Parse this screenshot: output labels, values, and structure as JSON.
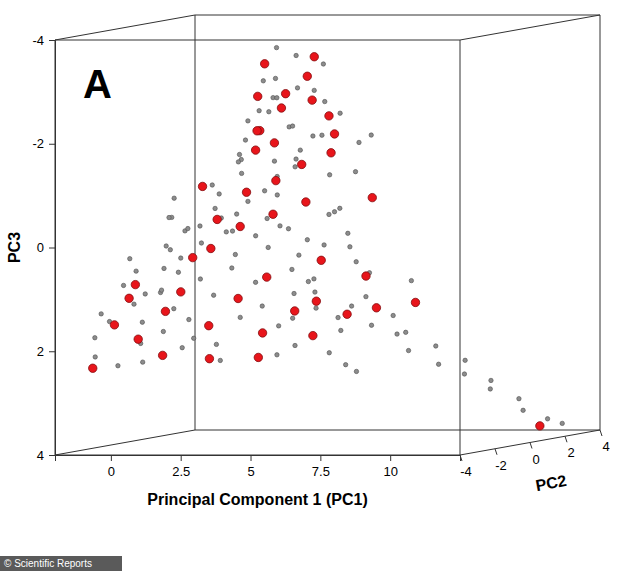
{
  "chart_data": {
    "type": "scatter",
    "annotations": [
      "A"
    ],
    "credit": "© Scientific Reports",
    "x_label": "Principal Component 1 (PC1)",
    "y_label": "PC3",
    "z_label": "PC2",
    "xlim": [
      -2,
      12.5
    ],
    "xticks": [
      0,
      2.5,
      5,
      7.5,
      10
    ],
    "ylim": [
      -4,
      4
    ],
    "yticks": [
      -4,
      -2,
      0,
      2,
      4
    ],
    "zlim": [
      -4,
      4
    ],
    "zticks": [
      -4,
      -2,
      0,
      2,
      4
    ],
    "series": [
      {
        "color": "#8c8c8c",
        "marker": "circle",
        "x": [
          -1.5,
          -1.2,
          -1.0,
          -0.8,
          -0.5,
          -0.3,
          0,
          0.2,
          0.4,
          0.6,
          0.8,
          1.0,
          1.2,
          1.4,
          1.6,
          1.8,
          2.0,
          2.2,
          2.4,
          2.6,
          2.8,
          3.0,
          -1.6,
          -1.3,
          -0.9,
          -0.6,
          -0.2,
          0.1,
          0.5,
          0.9,
          1.3,
          1.7,
          2.1,
          2.5,
          2.9,
          3.3,
          3.6,
          3.9,
          4.2,
          4.5,
          4.8,
          5.1,
          5.4,
          5.0,
          4.4,
          0.3,
          0.7,
          1.1,
          1.5,
          1.9,
          2.3,
          2.7,
          3.1,
          3.5,
          3.9,
          4.3,
          4.7,
          1.0,
          1.4,
          1.8,
          2.2,
          2.6,
          3.0,
          3.4,
          3.8,
          4.1,
          4.6,
          5.0,
          5.3,
          0,
          -0.4,
          -0.8,
          2.0,
          2.4,
          2.8,
          3.2,
          3.5,
          3.0,
          3.4,
          3.8,
          4.1,
          2.6,
          3.6,
          4.0,
          4.4,
          4.8,
          4.5,
          3.3,
          2.2,
          1.8,
          1.6,
          2.9,
          4.9,
          5.2,
          5.5,
          4.2,
          0.5,
          1.0,
          1.5,
          2.0,
          2.5,
          3.0,
          3.5,
          4.0,
          2.5,
          3.0,
          3.5,
          4.0,
          4.5,
          5.0,
          5.5,
          5.8,
          6.2,
          6.5,
          6.8,
          7.1,
          7.4,
          7.8,
          8.1,
          8.5,
          8.9,
          9.3,
          9.7,
          10.1,
          10.6,
          11.0,
          11.5,
          11.9,
          6.0,
          7.0,
          6.6,
          5.9
        ],
        "values": [
          2.2,
          1.8,
          2.4,
          1.5,
          2.0,
          1.2,
          1.8,
          2.3,
          1.0,
          1.6,
          2.1,
          1.3,
          0.8,
          1.9,
          2.4,
          1.1,
          1.6,
          0.6,
          2.0,
          1.4,
          0.9,
          1.8,
          1.4,
          0.9,
          1.1,
          0.6,
          0.3,
          0.7,
          0.2,
          0.5,
          0.1,
          0.4,
          -0.1,
          0.3,
          -0.3,
          1.2,
          0.7,
          1.5,
          0.9,
          1.7,
          1.1,
          1.9,
          0.6,
          2.3,
          2.1,
          -0.4,
          -0.8,
          -0.5,
          -1.0,
          -0.6,
          -1.2,
          -0.7,
          -1.4,
          -0.9,
          -1.6,
          -0.3,
          -1.1,
          0,
          -0.2,
          0.1,
          -0.4,
          0,
          -0.5,
          0.2,
          -0.2,
          0.4,
          0.1,
          -0.4,
          0.3,
          -0.1,
          0.2,
          -0.3,
          -1.8,
          -2.2,
          -2.6,
          -3.0,
          -3.4,
          -2.0,
          -2.4,
          -2.8,
          -3.2,
          -1.6,
          -1.8,
          -2.1,
          -2.5,
          -1.9,
          -1.5,
          -3.6,
          -2.9,
          -2.3,
          -1.4,
          -1.2,
          -2.8,
          -2.3,
          -1.7,
          -1.2,
          1.5,
          0.9,
          0.3,
          -0.3,
          -0.9,
          -1.5,
          -2.1,
          -2.7,
          2.4,
          1.7,
          1.0,
          0.3,
          -0.4,
          -1.1,
          -1.8,
          1.4,
          1.8,
          1.2,
          2.0,
          1.6,
          2.3,
          1.9,
          2.6,
          2.2,
          2.8,
          2.5,
          3.1,
          2.9,
          3.3,
          3.5,
          3.7,
          3.8,
          0.8,
          1.0,
          2.6,
          2.5
        ],
        "z": [
          -2.5,
          -3,
          -2,
          -2.8,
          -1.5,
          -2.2,
          -1.0,
          -2.5,
          -1.8,
          -0.5,
          -1.2,
          -2.0,
          -0.8,
          -1.5,
          -0.3,
          -1.0,
          0.2,
          -0.6,
          -1.8,
          0.5,
          -0.2,
          0.8,
          -2.0,
          -1.2,
          -0.6,
          -1.6,
          -2.6,
          -0.3,
          -1.4,
          -2.4,
          -0.9,
          0.4,
          -0.4,
          1.0,
          0.3,
          1.2,
          0.6,
          1.5,
          0.9,
          1.8,
          0,
          1.0,
          1.4,
          0.5,
          -0.5,
          -1.0,
          -1.5,
          0.2,
          -0.6,
          0.8,
          -0.2,
          1.2,
          0.4,
          -0.8,
          0.6,
          1.6,
          1.0,
          1.0,
          -2.0,
          1.4,
          -1.2,
          2.0,
          -1.6,
          1.8,
          -0.4,
          0.2,
          2.2,
          0.8,
          1.2,
          0.4,
          -0.2,
          0.6,
          0.5,
          0,
          0.8,
          0.3,
          1.0,
          1.4,
          -0.4,
          0.6,
          1.6,
          -0.8,
          1.8,
          0,
          1.2,
          0.4,
          -0.6,
          0.2,
          1.2,
          1.6,
          0.9,
          1.9,
          -0.2,
          0.8,
          1.4,
          -1.2,
          -3.0,
          -2.7,
          -2.4,
          -2.1,
          -1.8,
          -1.5,
          -1.2,
          -0.9,
          1.5,
          1.6,
          1.7,
          1.8,
          1.9,
          2.0,
          2.1,
          0.5,
          1.0,
          0.2,
          1.5,
          0.8,
          1.2,
          0.4,
          1.8,
          1.0,
          2.0,
          1.4,
          2.2,
          1.6,
          2.4,
          2.0,
          2.6,
          2.8,
          1.2,
          2.0,
          -0.5,
          0
        ]
      },
      {
        "color": "#e8151b",
        "marker": "circle",
        "x": [
          -1.4,
          -1.0,
          -0.4,
          0.2,
          0.6,
          1.0,
          1.5,
          1.9,
          2.3,
          2.8,
          3.2,
          3.7,
          4.1,
          4.6,
          5.2,
          0.8,
          1.3,
          1.7,
          2.1,
          2.5,
          2.9,
          3.3,
          3.7,
          4.1,
          4.5,
          2.3,
          2.7,
          3.1,
          3.5,
          3.9,
          3.0,
          4.3,
          3.6,
          2.0,
          4.7,
          5.0,
          4.4,
          1.6,
          0.4,
          5.5,
          6.0,
          5.6,
          0,
          -0.6,
          3.4,
          4.9,
          8.4,
          11.6
        ],
        "values": [
          2.4,
          1.6,
          1.9,
          1.4,
          2.2,
          1.0,
          1.7,
          2.3,
          1.2,
          1.9,
          0.8,
          1.5,
          2.0,
          1.3,
          1.6,
          0.4,
          -0.3,
          0.2,
          -0.8,
          -0.2,
          -1.0,
          -0.4,
          -1.3,
          -0.6,
          -1.5,
          -1.6,
          -2.0,
          -2.4,
          -2.7,
          -3.0,
          -3.3,
          -2.2,
          -1.8,
          -2.6,
          -2.6,
          -1.9,
          -3.4,
          -1.9,
          -0.9,
          0.9,
          1.5,
          -0.6,
          0.8,
          1.1,
          2.3,
          0.5,
          1.3,
          3.8
        ],
        "z": [
          -2.8,
          -2.2,
          -1.8,
          -1.2,
          -2.0,
          -1.6,
          -0.8,
          -1.4,
          -0.4,
          0.2,
          -0.2,
          0.6,
          1.0,
          0.4,
          1.2,
          -0.6,
          0,
          -1.0,
          0.4,
          -0.6,
          0.8,
          0,
          1.0,
          0.6,
          1.4,
          0.6,
          0.2,
          0.8,
          0.4,
          1.0,
          0,
          1.6,
          -0.4,
          1.2,
          0,
          0.8,
          0.6,
          1.8,
          0.6,
          1.8,
          1.6,
          2.0,
          -2.6,
          -2.0,
          -1.0,
          0.2,
          0,
          2.0
        ]
      }
    ]
  }
}
